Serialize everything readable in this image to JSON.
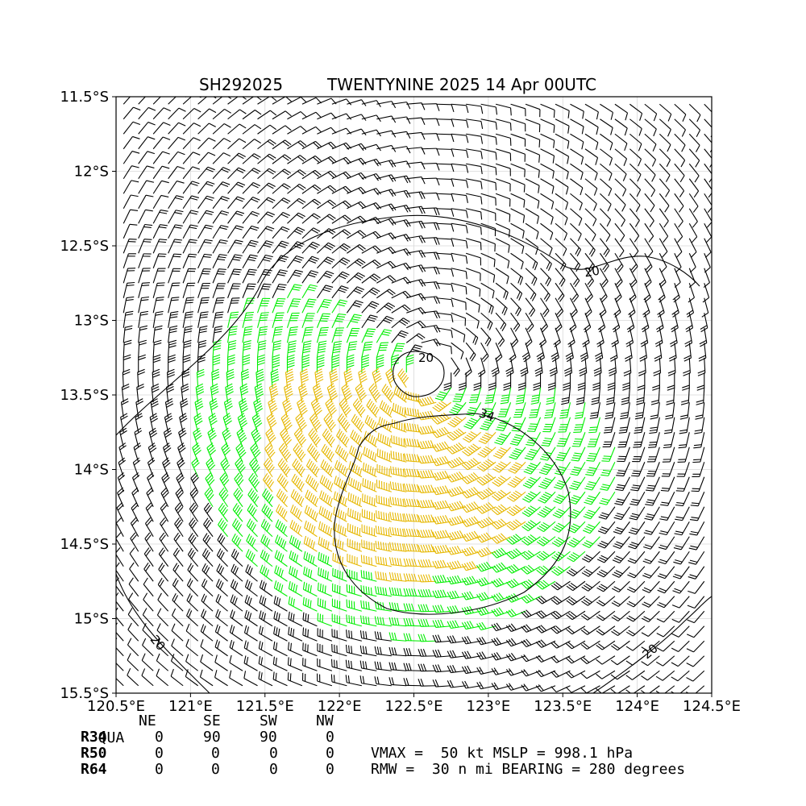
{
  "header": {
    "storm_id": "SH292025",
    "storm_title": "TWENTYNINE 2025 14 Apr 00UTC"
  },
  "chart_data": {
    "type": "wind-barb-map",
    "x_ticks": [
      "120.5°E",
      "121°E",
      "121.5°E",
      "122°E",
      "122.5°E",
      "123°E",
      "123.5°E",
      "124°E",
      "124.5°E"
    ],
    "y_ticks": [
      "11.5°S",
      "12°S",
      "12.5°S",
      "13°S",
      "13.5°S",
      "14°S",
      "14.5°S",
      "15°S",
      "15.5°S"
    ],
    "xlim": [
      120.5,
      124.5
    ],
    "ylim": [
      -15.5,
      -11.5
    ],
    "grid": true,
    "center": {
      "lon": 122.6,
      "lat": -13.35
    },
    "rotation": "clockwise",
    "contour_labels": [
      "20",
      "20",
      "20",
      "20",
      "34"
    ],
    "barb_colors": {
      "below_34kt": "#000000",
      "34_to_50kt": "#00ee00",
      "50_to_64kt": "#e6b800"
    }
  },
  "table": {
    "headers": [
      "QUA",
      "NE",
      "SE",
      "SW",
      "NW"
    ],
    "rows": [
      {
        "label": "R34",
        "values": [
          "0",
          "90",
          "90",
          "0"
        ]
      },
      {
        "label": "R50",
        "values": [
          "0",
          "0",
          "0",
          "0"
        ]
      },
      {
        "label": "R64",
        "values": [
          "0",
          "0",
          "0",
          "0"
        ]
      }
    ]
  },
  "info": {
    "line1": "VMAX =  50 kt MSLP = 998.1 hPa",
    "line2": "RMW =  30 n mi BEARING = 280 degrees"
  }
}
